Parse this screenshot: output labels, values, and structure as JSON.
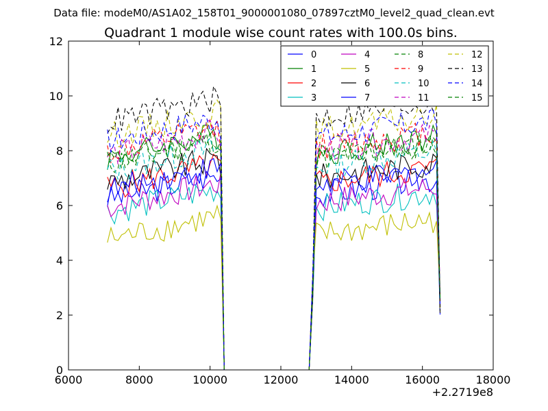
{
  "figure": {
    "suptitle": "Data file: modeM0/AS1A02_158T01_9000001080_07897cztM0_level2_quad_clean.evt"
  },
  "chart_data": {
    "type": "line",
    "title": "Quadrant 1 module wise count rates with 100.0s bins.",
    "xlabel": "",
    "ylabel": "",
    "x_offset_label": "+2.2719e8",
    "xlim": [
      6000,
      18000
    ],
    "ylim": [
      0,
      12
    ],
    "xticks": [
      6000,
      8000,
      10000,
      12000,
      14000,
      16000,
      18000
    ],
    "yticks": [
      0,
      2,
      4,
      6,
      8,
      10,
      12
    ],
    "grid": false,
    "legend_position": "top-right",
    "legend_columns": 4,
    "segments": [
      [
        7100,
        10400
      ],
      [
        12900,
        16500
      ]
    ],
    "series": [
      {
        "name": "0",
        "color": "#0000ff",
        "style": "solid",
        "level": 6.6
      },
      {
        "name": "1",
        "color": "#008000",
        "style": "solid",
        "level": 8.1
      },
      {
        "name": "2",
        "color": "#ff0000",
        "style": "solid",
        "level": 7.0
      },
      {
        "name": "3",
        "color": "#00bfbf",
        "style": "solid",
        "level": 6.1
      },
      {
        "name": "4",
        "color": "#bf00bf",
        "style": "solid",
        "level": 6.3
      },
      {
        "name": "5",
        "color": "#bfbf00",
        "style": "solid",
        "level": 5.1
      },
      {
        "name": "6",
        "color": "#000000",
        "style": "solid",
        "level": 7.2
      },
      {
        "name": "7",
        "color": "#0000ff",
        "style": "solid",
        "level": 6.9
      },
      {
        "name": "8",
        "color": "#008000",
        "style": "dashed",
        "level": 7.9
      },
      {
        "name": "9",
        "color": "#ff0000",
        "style": "dashed",
        "level": 8.3
      },
      {
        "name": "10",
        "color": "#00bfbf",
        "style": "dashed",
        "level": 7.6
      },
      {
        "name": "11",
        "color": "#bf00bf",
        "style": "dashed",
        "level": 8.2
      },
      {
        "name": "12",
        "color": "#bfbf00",
        "style": "dashed",
        "level": 8.9
      },
      {
        "name": "13",
        "color": "#000000",
        "style": "dashed",
        "level": 9.4
      },
      {
        "name": "14",
        "color": "#0000ff",
        "style": "dashed",
        "level": 8.7
      },
      {
        "name": "15",
        "color": "#008000",
        "style": "dashed",
        "level": 7.9
      }
    ]
  }
}
